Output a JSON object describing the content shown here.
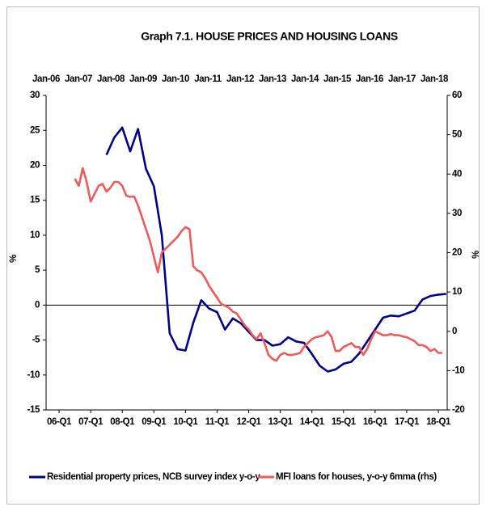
{
  "chart_data": {
    "type": "line",
    "title": "Graph 7.1. HOUSE PRICES AND HOUSING LOANS",
    "ylabel": "%",
    "y2label": "%",
    "xlim": [
      2005.59,
      2018.28
    ],
    "xticks": [
      {
        "value": 2006,
        "label": "06-Q1"
      },
      {
        "value": 2007,
        "label": "07-Q1"
      },
      {
        "value": 2008,
        "label": "08-Q1"
      },
      {
        "value": 2009,
        "label": "09-Q1"
      },
      {
        "value": 2010,
        "label": "10-Q1"
      },
      {
        "value": 2011,
        "label": "11-Q1"
      },
      {
        "value": 2012,
        "label": "12-Q1"
      },
      {
        "value": 2013,
        "label": "13-Q1"
      },
      {
        "value": 2014,
        "label": "14-Q1"
      },
      {
        "value": 2015,
        "label": "15-Q1"
      },
      {
        "value": 2016,
        "label": "16-Q1"
      },
      {
        "value": 2017,
        "label": "17-Q1"
      },
      {
        "value": 2018,
        "label": "18-Q1"
      }
    ],
    "x2lim": [
      2006,
      2018.4
    ],
    "x2ticks": [
      {
        "value": 2006,
        "label": "Jan-06"
      },
      {
        "value": 2007,
        "label": "Jan-07"
      },
      {
        "value": 2008,
        "label": "Jan-08"
      },
      {
        "value": 2009,
        "label": "Jan-09"
      },
      {
        "value": 2010,
        "label": "Jan-10"
      },
      {
        "value": 2011,
        "label": "Jan-11"
      },
      {
        "value": 2012,
        "label": "Jan-12"
      },
      {
        "value": 2013,
        "label": "Jan-13"
      },
      {
        "value": 2014,
        "label": "Jan-14"
      },
      {
        "value": 2015,
        "label": "Jan-15"
      },
      {
        "value": 2016,
        "label": "Jan-16"
      },
      {
        "value": 2017,
        "label": "Jan-17"
      },
      {
        "value": 2018,
        "label": "Jan-18"
      }
    ],
    "ylim": [
      -15,
      30
    ],
    "yticks": [
      -15,
      -10,
      -5,
      0,
      5,
      10,
      15,
      20,
      25,
      30
    ],
    "y2lim": [
      -20,
      60
    ],
    "y2ticks": [
      -20,
      -10,
      0,
      10,
      20,
      30,
      40,
      50,
      60
    ],
    "zero_line": true,
    "series": [
      {
        "name": "Residential property prices, NCB survey index y-o-y",
        "color": "#00008b",
        "axis": "y",
        "x": [
          2007.5,
          2007.75,
          2008,
          2008.25,
          2008.5,
          2008.75,
          2009,
          2009.25,
          2009.5,
          2009.75,
          2010,
          2010.25,
          2010.5,
          2010.75,
          2011,
          2011.25,
          2011.5,
          2011.75,
          2012,
          2012.25,
          2012.5,
          2012.75,
          2013,
          2013.25,
          2013.5,
          2013.75,
          2014,
          2014.25,
          2014.5,
          2014.75,
          2015,
          2015.25,
          2015.5,
          2015.75,
          2016,
          2016.25,
          2016.5,
          2016.75,
          2017,
          2017.25,
          2017.5,
          2017.75,
          2018,
          2018.25
        ],
        "values": [
          21.5,
          24,
          25.4,
          22,
          25.2,
          19.5,
          17,
          10,
          -4,
          -6.3,
          -6.5,
          -2.5,
          0.7,
          -0.5,
          -1,
          -3.5,
          -1.9,
          -2.6,
          -3.8,
          -5,
          -5,
          -5.8,
          -5.6,
          -4.6,
          -5.2,
          -5.4,
          -7,
          -8.7,
          -9.5,
          -9.2,
          -8.4,
          -8.1,
          -6.9,
          -5.2,
          -3.5,
          -1.8,
          -1.5,
          -1.6,
          -1.2,
          -0.8,
          0.8,
          1.3,
          1.5,
          1.6
        ]
      },
      {
        "name": "MFI loans for houses, y-o-y 6mma (rhs)",
        "color": "#f05a5a",
        "axis": "y2",
        "x": [
          2006.5,
          2006.625,
          2006.75,
          2006.875,
          2007,
          2007.125,
          2007.25,
          2007.375,
          2007.5,
          2007.625,
          2007.75,
          2007.875,
          2008,
          2008.125,
          2008.25,
          2008.375,
          2008.5,
          2008.625,
          2008.75,
          2008.875,
          2009,
          2009.125,
          2009.25,
          2009.375,
          2009.5,
          2009.625,
          2009.75,
          2009.875,
          2010,
          2010.125,
          2010.25,
          2010.375,
          2010.5,
          2010.625,
          2010.75,
          2010.875,
          2011,
          2011.125,
          2011.25,
          2011.375,
          2011.5,
          2011.625,
          2011.75,
          2011.875,
          2012,
          2012.125,
          2012.25,
          2012.375,
          2012.5,
          2012.625,
          2012.75,
          2012.875,
          2013,
          2013.125,
          2013.25,
          2013.375,
          2013.5,
          2013.625,
          2013.75,
          2013.875,
          2014,
          2014.125,
          2014.25,
          2014.375,
          2014.5,
          2014.625,
          2014.75,
          2014.875,
          2015,
          2015.125,
          2015.25,
          2015.375,
          2015.5,
          2015.625,
          2015.75,
          2015.875,
          2016,
          2016.125,
          2016.25,
          2016.375,
          2016.5,
          2016.625,
          2016.75,
          2016.875,
          2017,
          2017.125,
          2017.25,
          2017.375,
          2017.5,
          2017.625,
          2017.75,
          2017.875,
          2018,
          2018.125
        ],
        "values": [
          38.8,
          37,
          41.5,
          38,
          33,
          35,
          37,
          37.5,
          35.5,
          36.5,
          38,
          38,
          37,
          34.5,
          34.2,
          34.3,
          32,
          29,
          26,
          23,
          19,
          15,
          20,
          21,
          22,
          23,
          24,
          25.5,
          26.5,
          26,
          16.5,
          15.5,
          15,
          13.5,
          11.5,
          10,
          8.5,
          7,
          6.5,
          6,
          5,
          4.5,
          3,
          1.5,
          0.5,
          -1,
          -2,
          -0.5,
          -3,
          -6,
          -7,
          -7.5,
          -6,
          -5.5,
          -6,
          -6,
          -5.8,
          -5.5,
          -4,
          -3,
          -2,
          -1.5,
          -1.3,
          -1,
          0,
          -1.5,
          -5,
          -5,
          -4,
          -3.5,
          -3,
          -4,
          -4,
          -6,
          -4.5,
          -2,
          0,
          -0.5,
          -1,
          -1,
          -0.7,
          -1,
          -1,
          -1.3,
          -1.5,
          -2,
          -2.5,
          -3.5,
          -3.5,
          -4,
          -5,
          -4.5,
          -5.5,
          -5.5
        ]
      }
    ]
  }
}
